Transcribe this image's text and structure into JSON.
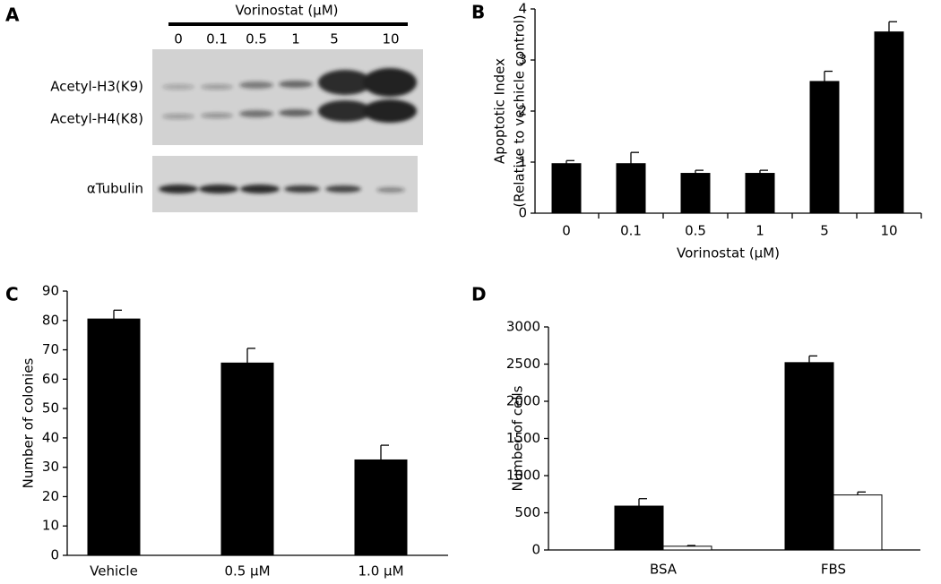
{
  "panel_labels": [
    "A",
    "B",
    "C",
    "D"
  ],
  "blot": {
    "title": "Vorinostat (μM)",
    "lanes": [
      "0",
      "0.1",
      "0.5",
      "1",
      "5",
      "10"
    ],
    "rows": [
      "Acetyl-H3(K9)",
      "Acetyl-H4(K8)",
      "αTubulin"
    ]
  },
  "chart_data": [
    {
      "type": "bar",
      "categories": [
        "0",
        "0.1",
        "0.5",
        "1",
        "5",
        "10"
      ],
      "series": [
        {
          "color": "#000000",
          "values": [
            0.97,
            0.97,
            0.78,
            0.78,
            2.58,
            3.55
          ],
          "errors": [
            0.06,
            0.22,
            0.06,
            0.06,
            0.2,
            0.2
          ]
        }
      ],
      "ylim": [
        0,
        4
      ],
      "yticks": [
        0,
        1,
        2,
        3,
        4
      ],
      "ylabel": [
        "Apoptotic Index",
        "(Relative to vechicle control)"
      ],
      "xlabel": "Vorinostat (μM)",
      "grid": false
    },
    {
      "type": "bar",
      "categories": [
        "Vehicle",
        "0.5 μM",
        "1.0 μM"
      ],
      "series": [
        {
          "color": "#000000",
          "values": [
            80.5,
            65.5,
            32.5
          ],
          "errors": [
            3,
            5,
            5
          ]
        }
      ],
      "ylim": [
        0,
        90
      ],
      "yticks": [
        0,
        10,
        20,
        30,
        40,
        50,
        60,
        70,
        80,
        90
      ],
      "ylabel": [
        "Number of colonies"
      ],
      "grid": false
    },
    {
      "type": "bar",
      "categories": [
        "BSA",
        "FBS"
      ],
      "series": [
        {
          "color": "#000000",
          "values": [
            590,
            2520
          ],
          "errors": [
            100,
            90
          ]
        },
        {
          "color": "#ffffff",
          "values": [
            50,
            740
          ],
          "errors": [
            10,
            40
          ]
        }
      ],
      "ylim": [
        0,
        3000
      ],
      "yticks": [
        0,
        500,
        1000,
        1500,
        2000,
        2500,
        3000
      ],
      "ylabel": [
        "Number of cells"
      ],
      "grid": false
    }
  ]
}
